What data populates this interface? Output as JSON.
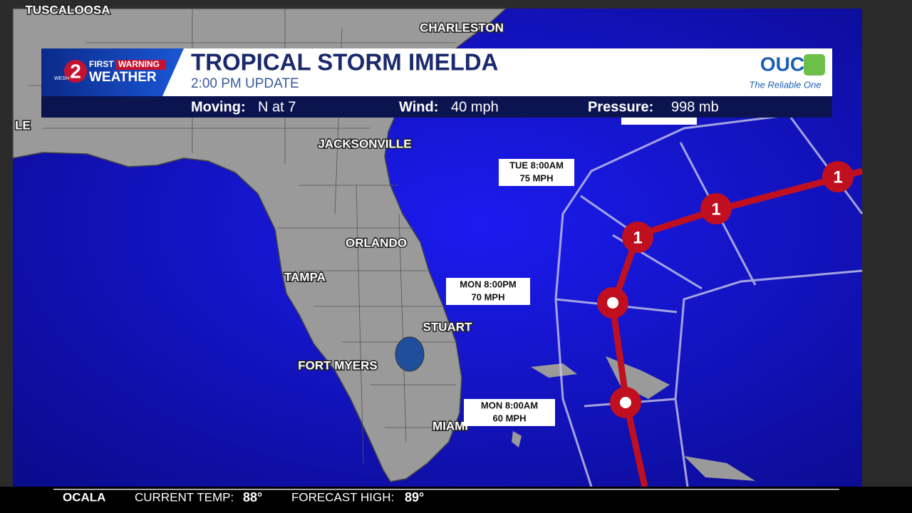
{
  "header": {
    "brand": {
      "station": "WESH",
      "channel": "2",
      "first": "FIRST",
      "warning": "WARNING",
      "weather": "WEATHER"
    },
    "title": "TROPICAL STORM IMELDA",
    "subtitle": "2:00 PM UPDATE",
    "stats": [
      {
        "label": "Moving:",
        "value": "N at 7"
      },
      {
        "label": "Wind:",
        "value": "40 mph"
      },
      {
        "label": "Pressure:",
        "value": "998 mb"
      }
    ],
    "sponsor": {
      "name": "OUC",
      "tagline": "The Reliable One"
    }
  },
  "map": {
    "cities": [
      "TUSCALOOSA",
      "CHARLESTON",
      "LE",
      "JACKSONVILLE",
      "ORLANDO",
      "TAMPA",
      "STUART",
      "FORT MYERS",
      "MIAMI"
    ],
    "forecast_points": [
      {
        "time": "TUE 8:00AM",
        "wind": "75 MPH"
      },
      {
        "time": "MON 8:00PM",
        "wind": "70 MPH"
      },
      {
        "time": "MON 8:00AM",
        "wind": "60 MPH"
      }
    ],
    "category_markers": [
      "1",
      "1",
      "1"
    ]
  },
  "ticker": {
    "city": "OCALA",
    "current_label": "CURRENT TEMP:",
    "current_value": "88°",
    "high_label": "FORECAST HIGH:",
    "high_value": "89°"
  }
}
